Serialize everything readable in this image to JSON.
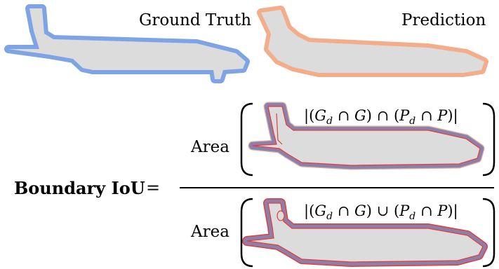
{
  "labels": {
    "ground_truth": "Ground Truth",
    "prediction": "Prediction",
    "boundary_iou": "Boundary IoU",
    "equals": "=",
    "area_numerator": "Area",
    "area_denominator": "Area"
  },
  "formulas": {
    "numerator": {
      "open": "|(",
      "g": "G",
      "d": "d",
      "op_inner": "∩",
      "op_outer": "∩",
      "p": "P",
      "close": ")|"
    },
    "denominator": {
      "open": "|(",
      "g": "G",
      "d": "d",
      "op_inner": "∩",
      "op_outer": "∪",
      "p": "P",
      "close": ")|"
    }
  },
  "colors": {
    "ground_truth_stroke": "#7ea4e6",
    "prediction_stroke": "#f3ad8a",
    "fill": "#dcdcdc",
    "overlap_stroke": "#8c7fa8",
    "contour_red": "#e43c3c"
  }
}
